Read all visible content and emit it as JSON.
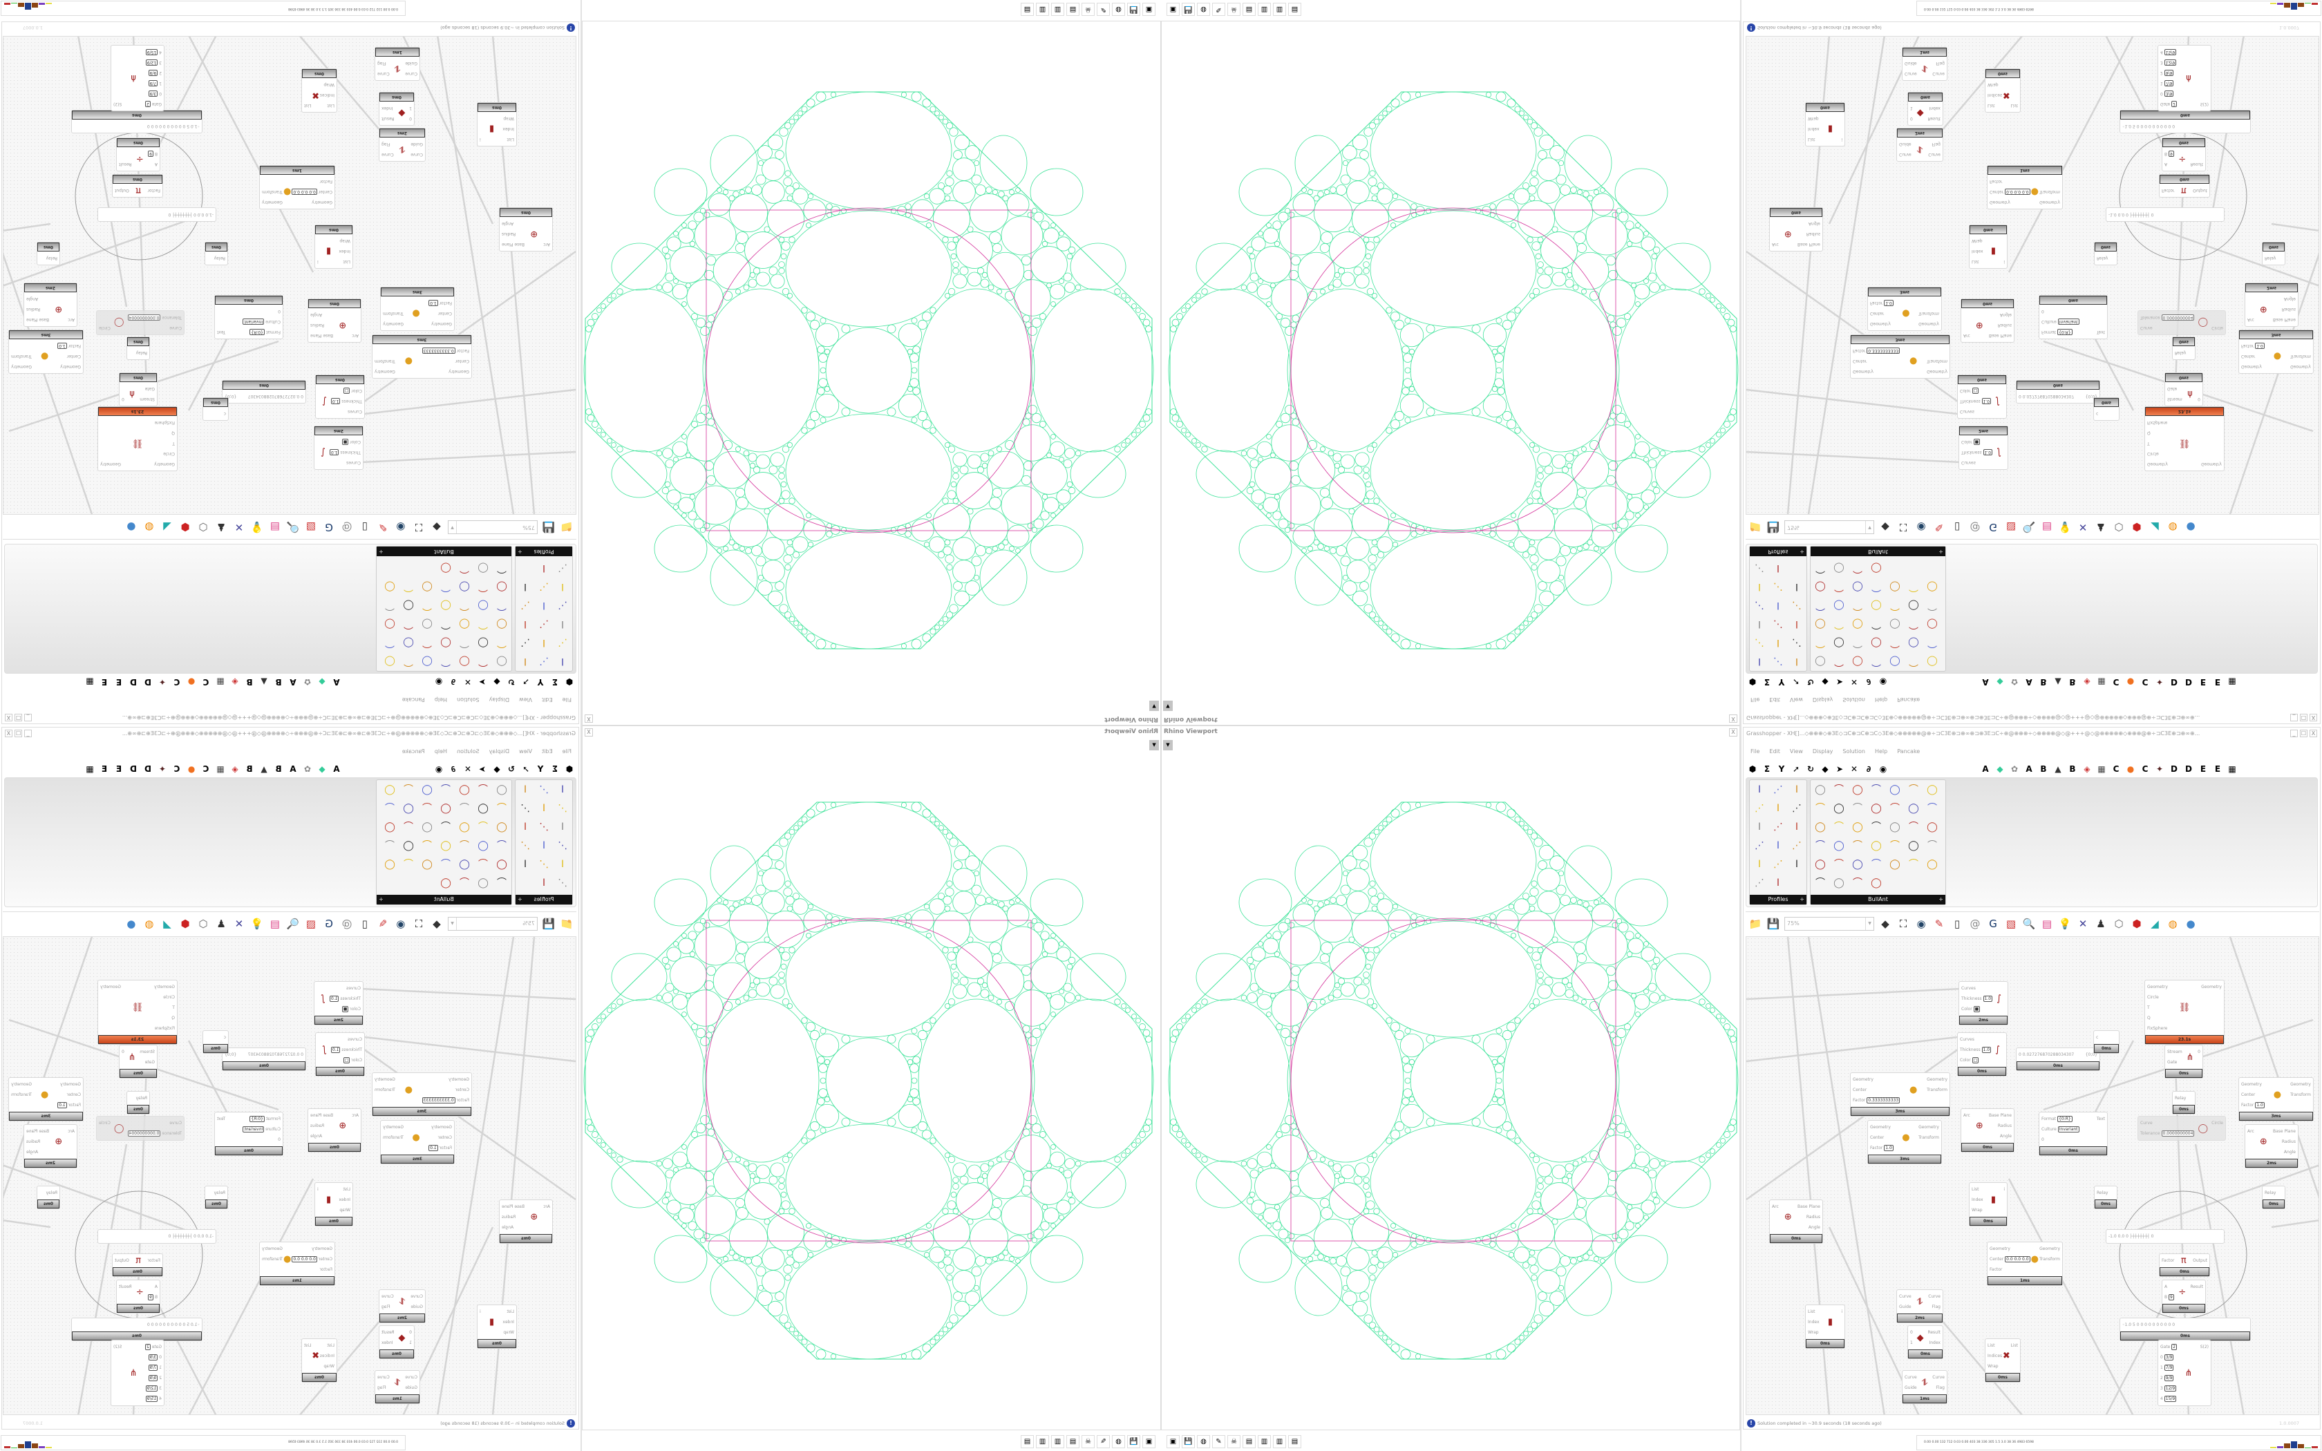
{
  "viewport": {
    "title": "Rhino Viewport",
    "close_label": "X",
    "dropdown_icon": "chevron-down-icon",
    "curve_colors": {
      "packing": "#3fe39a",
      "boundary": "#d4309a"
    }
  },
  "grasshopper": {
    "title": "Grasshopper - XH[]...◇⊕⊕⊕◇⊕3E◇⊐C⊕⊐C⊕⊐C◇3E⊕◇⊕⊕⊕⊕⊕@⊕÷⊐C3E⊕⊐⊕∞⊕⊐⊕3E⊐C÷⊕@⊕⊕⊕÷◇⊕⊕⊕⊕@◇@+++@◇@⊕⊕⊕⊕⊕◇⊕⊕⊕@⊕÷⊐C3E⊕⊐⊕∞⊕...",
    "window_buttons": [
      "_",
      "☐",
      "X"
    ],
    "menu": [
      "File",
      "Edit",
      "View",
      "Display",
      "Solution",
      "Help",
      "Pancake"
    ],
    "tab_icons": [
      "⬢",
      "Σ",
      "Y",
      "➚",
      "↻",
      "◆",
      "➤",
      "✕",
      "∂",
      "◉"
    ],
    "tab_letters": [
      "A",
      "◆",
      "✿",
      "A",
      "B",
      "▲",
      "B",
      "◈",
      "▦",
      "C",
      "●",
      "C",
      "✦",
      "D",
      "D",
      "E",
      "E",
      "▦"
    ],
    "panels": [
      {
        "label": "Profiles",
        "expand": "+"
      },
      {
        "label": "BullAnt",
        "expand": "+"
      }
    ],
    "canvas_toolbar": {
      "zoom": "75%",
      "icons": [
        "open-file-icon",
        "save-icon",
        "zoom-extents-icon",
        "preview-eye-icon",
        "sketch-pen-icon",
        "bake-icon",
        "at-icon",
        "gha-icon",
        "image-icon",
        "search-icon",
        "package-icon",
        "bulb-icon",
        "wires-icon",
        "material-icon",
        "mesh-icon",
        "cube-icon",
        "shell-icon",
        "green-shape-icon",
        "sphere-icon",
        "blue-sphere-icon"
      ]
    },
    "nodes": [
      {
        "inputs": [
          [
            "Curves"
          ],
          [
            "Thickness",
            "1.0"
          ],
          [
            "Color",
            "■"
          ]
        ],
        "outputs": [],
        "icon": "∫",
        "time": "2ms"
      },
      {
        "inputs": [
          [
            "Curves"
          ],
          [
            "Thickness",
            "1.0"
          ],
          [
            "Color",
            "□"
          ]
        ],
        "outputs": [],
        "icon": "∫",
        "time": "0ms"
      },
      {
        "inputs": [
          [
            "Geometry"
          ],
          [
            "Center"
          ],
          [
            "Factor",
            "0.3333333333"
          ]
        ],
        "outputs": [
          "Geometry",
          "Transform"
        ],
        "icon": "●",
        "time": "3ms"
      },
      {
        "inputs": [
          [
            "Geometry"
          ],
          [
            "Center"
          ],
          [
            "Factor",
            "1.0"
          ]
        ],
        "outputs": [
          "Geometry",
          "Transform"
        ],
        "icon": "●",
        "time": "3ms"
      },
      {
        "inputs": [
          [
            "Arc"
          ]
        ],
        "outputs": [
          "Base Plane",
          "Radius",
          "Angle"
        ],
        "icon": "⊕",
        "time": "0ms"
      },
      {
        "inputs": [
          [
            "0  0.027276870288034307"
          ]
        ],
        "outputs": [
          "{0;0}"
        ],
        "icon": "",
        "time": "0ms"
      },
      {
        "inputs": [
          [
            "Geometry"
          ],
          [
            "Circle"
          ],
          [
            "T"
          ],
          [
            "Q"
          ],
          [
            "FixSphere"
          ]
        ],
        "outputs": [
          "Geometry"
        ],
        "icon": "⛓",
        "time": "23.1s",
        "hot": true
      },
      {
        "inputs": [
          [
            "Stream"
          ],
          [
            "Gate"
          ]
        ],
        "outputs": [
          "0"
        ],
        "icon": "⋔",
        "time": "0ms"
      },
      {
        "inputs": [
          [
            "Relay"
          ]
        ],
        "outputs": [],
        "icon": "",
        "time": "0ms"
      },
      {
        "inputs": [
          [
            "Format",
            "{0:R}"
          ],
          [
            "Culture",
            "Invariant"
          ],
          [
            "0"
          ]
        ],
        "outputs": [
          "Text"
        ],
        "icon": "",
        "time": "0ms"
      },
      {
        "inputs": [
          [
            "Curve"
          ],
          [
            "Tolerance",
            "0.0000000004"
          ]
        ],
        "outputs": [
          "Circle"
        ],
        "icon": "◯",
        "time": "",
        "disabled": true
      },
      {
        "inputs": [
          [
            "Geometry"
          ],
          [
            "Center"
          ],
          [
            "Factor",
            "1.0"
          ]
        ],
        "outputs": [
          "Geometry",
          "Transform"
        ],
        "icon": "●",
        "time": "3ms"
      },
      {
        "inputs": [
          [
            "Arc"
          ]
        ],
        "outputs": [
          "Base Plane",
          "Radius",
          "Angle"
        ],
        "icon": "⊕",
        "time": "2ms"
      },
      {
        "inputs": [
          [
            "c"
          ]
        ],
        "outputs": [],
        "icon": "",
        "time": "0ms"
      },
      {
        "inputs": [
          [
            "Arc"
          ]
        ],
        "outputs": [
          "Base Plane",
          "Radius",
          "Angle"
        ],
        "icon": "⊕",
        "time": "0ms"
      },
      {
        "inputs": [
          [
            "List"
          ],
          [
            "Index"
          ],
          [
            "Wrap"
          ]
        ],
        "outputs": [
          "i"
        ],
        "icon": "▮",
        "time": "0ms"
      },
      {
        "inputs": [
          [
            "Curve"
          ],
          [
            "Guide"
          ]
        ],
        "outputs": [
          "Curve",
          "Flag"
        ],
        "icon": "⥮",
        "time": "2ms"
      },
      {
        "inputs": [
          [
            "0"
          ],
          [
            "1"
          ]
        ],
        "outputs": [
          "Result",
          "Index"
        ],
        "icon": "◆",
        "time": "0ms"
      },
      {
        "inputs": [
          [
            "Curve"
          ],
          [
            "Guide"
          ]
        ],
        "outputs": [
          "Curve",
          "Flag"
        ],
        "icon": "⥮",
        "time": "1ms"
      },
      {
        "inputs": [
          [
            "List"
          ],
          [
            "Index"
          ],
          [
            "Wrap"
          ]
        ],
        "outputs": [
          "i"
        ],
        "icon": "▮",
        "time": "0ms"
      },
      {
        "inputs": [
          [
            "List"
          ],
          [
            "Indices"
          ],
          [
            "Wrap"
          ]
        ],
        "outputs": [
          "List"
        ],
        "icon": "✖",
        "time": "0ms"
      },
      {
        "inputs": [
          [
            "Geometry"
          ],
          [
            "Center",
            "0.0  0.0  0.0"
          ],
          [
            "Factor"
          ]
        ],
        "outputs": [
          "Geometry",
          "Transform"
        ],
        "icon": "●",
        "time": "1ms"
      },
      {
        "inputs": [
          [
            "Relay"
          ]
        ],
        "outputs": [],
        "icon": "",
        "time": "0ms"
      },
      {
        "inputs": [
          [
            "Relay"
          ]
        ],
        "outputs": [],
        "icon": "",
        "time": "0ms"
      },
      {
        "inputs": [
          [
            "-1.0  0.0  0   ├┼┼┼┼┼┼┤ 0"
          ]
        ],
        "outputs": [],
        "icon": "",
        "time": ""
      },
      {
        "inputs": [
          [
            "Factor"
          ]
        ],
        "outputs": [
          "Output"
        ],
        "icon": "π",
        "time": "0ms"
      },
      {
        "inputs": [
          [
            "A"
          ],
          [
            "B",
            "9"
          ]
        ],
        "outputs": [
          "Result"
        ],
        "icon": "÷",
        "time": "0ms"
      },
      {
        "inputs": [
          [
            "◦1.0 5 0 0 0 0 0 0 0 0 0 0"
          ]
        ],
        "outputs": [],
        "icon": "",
        "time": "0ms"
      },
      {
        "inputs": [
          [
            "Gate",
            "2"
          ],
          [
            "0",
            "3/9"
          ],
          [
            "1",
            "7/9"
          ],
          [
            "2",
            "9/9"
          ],
          [
            "3",
            "12/9"
          ],
          [
            "4",
            "15/9"
          ]
        ],
        "outputs": [
          "S(2)"
        ],
        "icon": "⋔",
        "time": ""
      }
    ],
    "status": {
      "icon": "info-icon",
      "message": "Solution completed in ~30.9 seconds (18 seconds ago)",
      "version": "1.0.0007"
    }
  },
  "taskbar": {
    "stats": "0.00 0.00 132 712 0.03 0.00 403  38  336  305  1.5  3.0  38  36  4983 6598",
    "apps": [
      "▣",
      "💾",
      "◍",
      "✎",
      "☠",
      "▤",
      "▥",
      "▥",
      "▤"
    ],
    "bar_colors": [
      "#e6e04a",
      "#7a3fc0",
      "#8b4513",
      "#1f3f8f",
      "#8b4513",
      "#3cc03c",
      "#c03030"
    ]
  }
}
